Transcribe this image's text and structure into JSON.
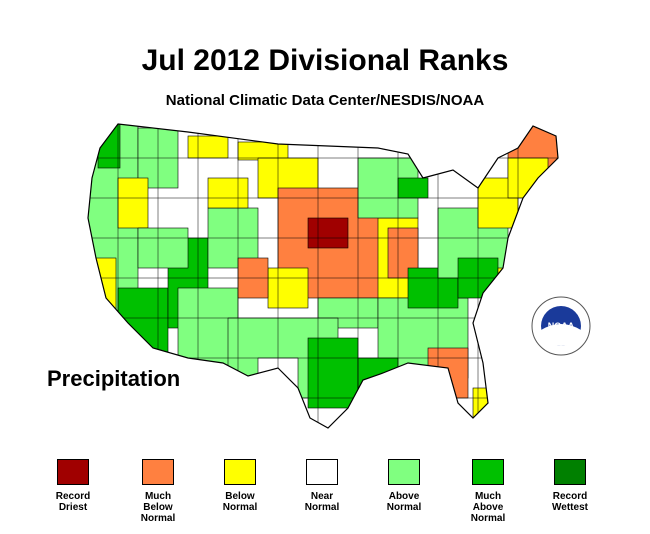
{
  "title": "Jul 2012 Divisional Ranks",
  "subtitle": "National Climatic Data Center/NESDIS/NOAA",
  "variable_label": "Precipitation",
  "logo": {
    "icon": "noaa-logo-icon",
    "text": "NOAA"
  },
  "legend": [
    {
      "label": "Record\nDriest",
      "color": "#a00000"
    },
    {
      "label": "Much\nBelow\nNormal",
      "color": "#ff8040"
    },
    {
      "label": "Below\nNormal",
      "color": "#ffff00"
    },
    {
      "label": "Near\nNormal",
      "color": "#ffffff"
    },
    {
      "label": "Above\nNormal",
      "color": "#80ff80"
    },
    {
      "label": "Much\nAbove\nNormal",
      "color": "#00c000"
    },
    {
      "label": "Record\nWettest",
      "color": "#008000"
    }
  ],
  "colors": {
    "record_driest": "#a00000",
    "much_below": "#ff8040",
    "below": "#ffff00",
    "near": "#ffffff",
    "above": "#80ff80",
    "much_above": "#00c000",
    "record_wettest": "#008000",
    "outline": "#000000"
  }
}
